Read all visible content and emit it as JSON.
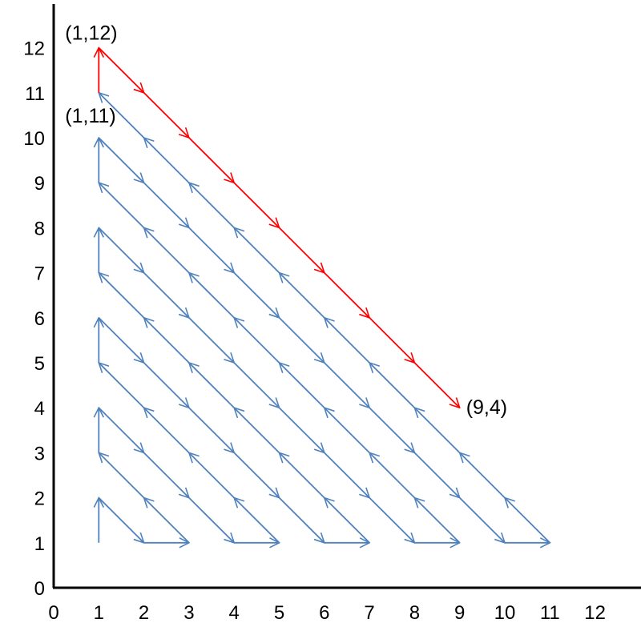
{
  "chart_data": {
    "type": "line",
    "title": "",
    "xlabel": "",
    "ylabel": "",
    "xlim": [
      0,
      12
    ],
    "ylim": [
      0,
      12
    ],
    "x_ticks": [
      "0",
      "1",
      "2",
      "3",
      "4",
      "5",
      "6",
      "7",
      "8",
      "9",
      "10",
      "11",
      "12"
    ],
    "y_ticks": [
      "0",
      "1",
      "2",
      "3",
      "4",
      "5",
      "6",
      "7",
      "8",
      "9",
      "10",
      "11",
      "12"
    ],
    "grid": false,
    "colors": {
      "blue": "#4f81bd",
      "red": "#ff0000",
      "axis": "#000000"
    },
    "series": [
      {
        "color": "#4f81bd",
        "points": [
          [
            1,
            1
          ],
          [
            1,
            2
          ],
          [
            2,
            1
          ],
          [
            3,
            1
          ],
          [
            2,
            2
          ],
          [
            1,
            3
          ],
          [
            1,
            4
          ],
          [
            2,
            3
          ],
          [
            3,
            2
          ],
          [
            4,
            1
          ],
          [
            5,
            1
          ],
          [
            4,
            2
          ],
          [
            3,
            3
          ],
          [
            2,
            4
          ],
          [
            1,
            5
          ],
          [
            1,
            6
          ],
          [
            2,
            5
          ],
          [
            3,
            4
          ],
          [
            4,
            3
          ],
          [
            5,
            2
          ],
          [
            6,
            1
          ],
          [
            7,
            1
          ],
          [
            6,
            2
          ],
          [
            5,
            3
          ],
          [
            4,
            4
          ],
          [
            3,
            5
          ],
          [
            2,
            6
          ],
          [
            1,
            7
          ],
          [
            1,
            8
          ],
          [
            2,
            7
          ],
          [
            3,
            6
          ],
          [
            4,
            5
          ],
          [
            5,
            4
          ],
          [
            6,
            3
          ],
          [
            7,
            2
          ],
          [
            8,
            1
          ],
          [
            9,
            1
          ],
          [
            8,
            2
          ],
          [
            7,
            3
          ],
          [
            6,
            4
          ],
          [
            5,
            5
          ],
          [
            4,
            6
          ],
          [
            3,
            7
          ],
          [
            2,
            8
          ],
          [
            1,
            9
          ],
          [
            1,
            10
          ],
          [
            2,
            9
          ],
          [
            3,
            8
          ],
          [
            4,
            7
          ],
          [
            5,
            6
          ],
          [
            6,
            5
          ],
          [
            7,
            4
          ],
          [
            8,
            3
          ],
          [
            9,
            2
          ],
          [
            10,
            1
          ],
          [
            11,
            1
          ],
          [
            10,
            2
          ],
          [
            9,
            3
          ],
          [
            8,
            4
          ],
          [
            7,
            5
          ],
          [
            6,
            6
          ],
          [
            5,
            7
          ],
          [
            4,
            8
          ],
          [
            3,
            9
          ],
          [
            2,
            10
          ],
          [
            1,
            11
          ]
        ]
      },
      {
        "color": "#ff0000",
        "points": [
          [
            1,
            11
          ],
          [
            1,
            12
          ],
          [
            2,
            11
          ],
          [
            3,
            10
          ],
          [
            4,
            9
          ],
          [
            5,
            8
          ],
          [
            6,
            7
          ],
          [
            7,
            6
          ],
          [
            8,
            5
          ],
          [
            9,
            4
          ]
        ]
      }
    ],
    "annotations": [
      {
        "text": "(1,12)",
        "x": 1,
        "y": 12
      },
      {
        "text": "(1,11)",
        "x": 1,
        "y": 11
      },
      {
        "text": "(9,4)",
        "x": 9,
        "y": 4
      }
    ]
  }
}
